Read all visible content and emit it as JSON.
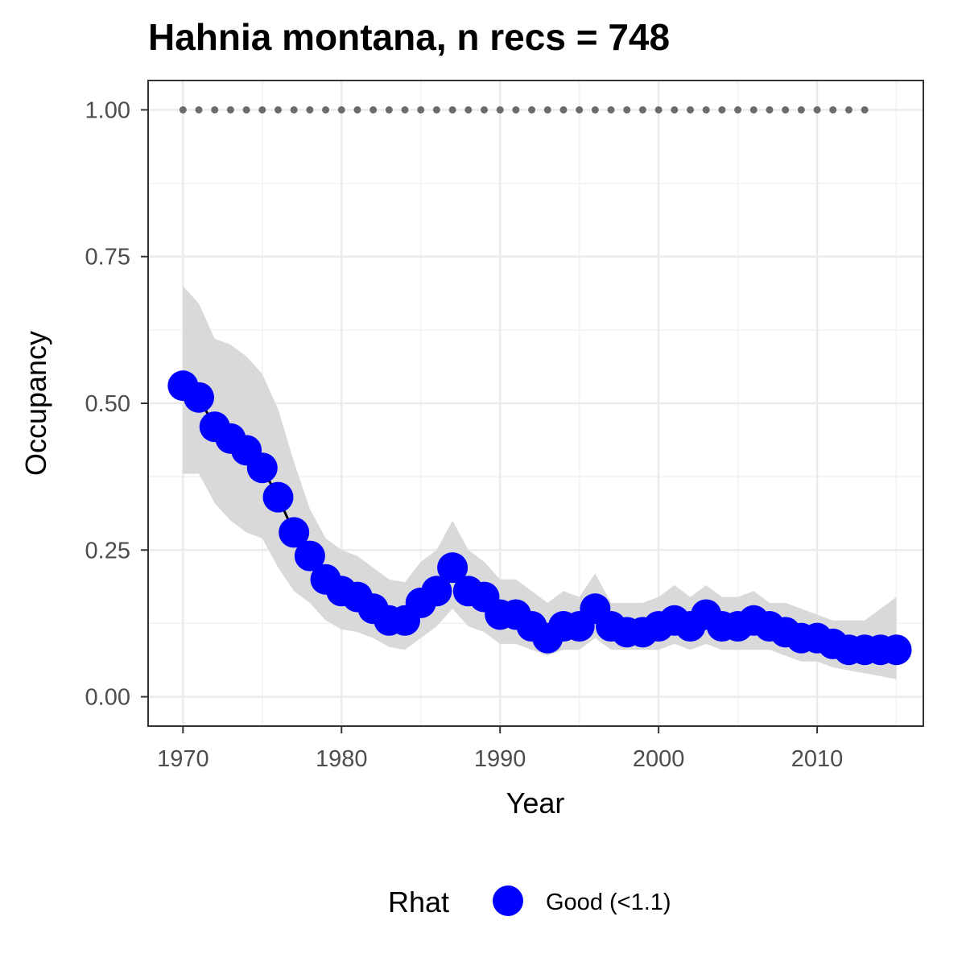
{
  "chart_data": {
    "type": "line",
    "title": "Hahnia montana, n recs = 748",
    "xlabel": "Year",
    "ylabel": "Occupancy",
    "xlim": [
      1967.8,
      2016.7
    ],
    "ylim": [
      -0.05,
      1.05
    ],
    "xticks": [
      1970,
      1980,
      1990,
      2000,
      2010
    ],
    "xtick_labels": [
      "1970",
      "1980",
      "1990",
      "2000",
      "2010"
    ],
    "yticks": [
      0,
      0.25,
      0.5,
      0.75,
      1
    ],
    "ytick_labels": [
      "0.00",
      "0.25",
      "0.50",
      "0.75",
      "1.00"
    ],
    "grid": true,
    "legend": {
      "title": "Rhat",
      "position": "bottom",
      "entries": [
        {
          "label": "Good (<1.1)",
          "color": "#0000ff"
        }
      ]
    },
    "colors": {
      "points": "#0000ff",
      "line": "#000000",
      "ribbon": "#d9d9d9",
      "reference": "#6b6b6b"
    },
    "reference_line": {
      "y": 1.0,
      "x_start": 1970,
      "x_end": 2013
    },
    "x": [
      1970,
      1971,
      1972,
      1973,
      1974,
      1975,
      1976,
      1977,
      1978,
      1979,
      1980,
      1981,
      1982,
      1983,
      1984,
      1985,
      1986,
      1987,
      1988,
      1989,
      1990,
      1991,
      1992,
      1993,
      1994,
      1995,
      1996,
      1997,
      1998,
      1999,
      2000,
      2001,
      2002,
      2003,
      2004,
      2005,
      2006,
      2007,
      2008,
      2009,
      2010,
      2011,
      2012,
      2013,
      2014,
      2015
    ],
    "series": [
      {
        "values": [
          0.53,
          0.51,
          0.46,
          0.44,
          0.42,
          0.39,
          0.34,
          0.28,
          0.24,
          0.2,
          0.18,
          0.17,
          0.15,
          0.13,
          0.13,
          0.16,
          0.18,
          0.22,
          0.18,
          0.17,
          0.14,
          0.14,
          0.12,
          0.1,
          0.12,
          0.12,
          0.15,
          0.12,
          0.11,
          0.11,
          0.12,
          0.13,
          0.12,
          0.14,
          0.12,
          0.12,
          0.13,
          0.12,
          0.11,
          0.1,
          0.1,
          0.09,
          0.08,
          0.08,
          0.08,
          0.08
        ],
        "lower": [
          0.38,
          0.38,
          0.33,
          0.3,
          0.28,
          0.27,
          0.22,
          0.18,
          0.16,
          0.13,
          0.115,
          0.11,
          0.1,
          0.085,
          0.08,
          0.1,
          0.12,
          0.15,
          0.12,
          0.11,
          0.09,
          0.09,
          0.08,
          0.07,
          0.08,
          0.08,
          0.1,
          0.08,
          0.08,
          0.08,
          0.08,
          0.09,
          0.08,
          0.09,
          0.08,
          0.08,
          0.08,
          0.08,
          0.07,
          0.06,
          0.06,
          0.05,
          0.045,
          0.04,
          0.035,
          0.03
        ],
        "upper": [
          0.7,
          0.67,
          0.61,
          0.6,
          0.58,
          0.55,
          0.49,
          0.4,
          0.32,
          0.27,
          0.25,
          0.24,
          0.22,
          0.2,
          0.195,
          0.23,
          0.25,
          0.3,
          0.25,
          0.23,
          0.2,
          0.2,
          0.18,
          0.16,
          0.18,
          0.17,
          0.21,
          0.16,
          0.16,
          0.16,
          0.17,
          0.19,
          0.17,
          0.19,
          0.17,
          0.17,
          0.18,
          0.16,
          0.16,
          0.15,
          0.14,
          0.13,
          0.13,
          0.13,
          0.15,
          0.17
        ]
      }
    ]
  }
}
